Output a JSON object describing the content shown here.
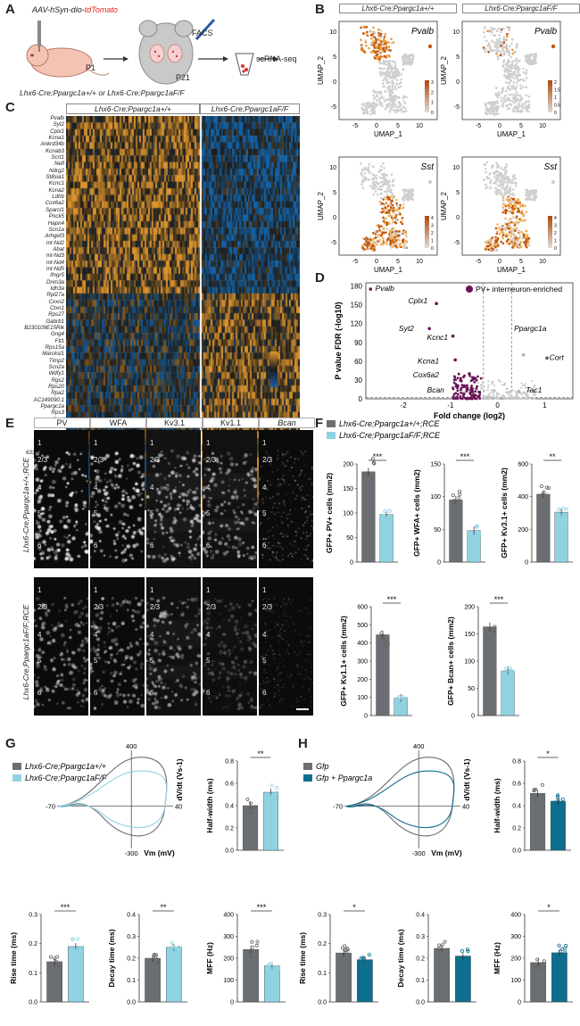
{
  "panelA": {
    "letter": "A",
    "virus_prefix": "AAV-hSyn-dio-",
    "virus_reporter": "tdTomato",
    "age1": "P1",
    "age2": "P21",
    "method": "FACS",
    "readout": "scRNA-seq",
    "genotypes": "Lhx6-Cre;Ppargc1a+/+ or Lhx6-Cre;Ppargc1aF/F"
  },
  "panelB": {
    "letter": "B",
    "col_titles": [
      "Lhx6-Cre;Ppargc1a+/+",
      "Lhx6-Cre;Ppargc1aF/F"
    ],
    "genes": [
      "Pvalb",
      "Pvalb",
      "Sst",
      "Sst"
    ],
    "xlabel": "UMAP_1",
    "ylabel": "UMAP_2",
    "xticks": [
      "-5",
      "0",
      "5",
      "10"
    ],
    "yticks": [
      "10",
      "5",
      "0",
      "-5"
    ],
    "scales": [
      [
        "3",
        "2",
        "1",
        "0"
      ],
      [
        "2",
        "1.5",
        "1",
        "0.5",
        "0"
      ],
      [
        "4",
        "3",
        "2",
        "1",
        "0"
      ],
      [
        "4",
        "3",
        "2",
        "1",
        "0"
      ]
    ]
  },
  "panelC": {
    "letter": "C",
    "col_titles": [
      "Lhx6-Cre;Ppargc1a+/+",
      "Lhx6-Cre;Ppargc1aF/F"
    ],
    "genes": [
      "Pvalb",
      "Syt2",
      "Cplx1",
      "Kcna1",
      "Ankrd34b",
      "Kcnab3",
      "Scrt1",
      "Nefl",
      "Ndrg2",
      "St8sia1",
      "Kcnc1",
      "Kcna2",
      "Ldhb",
      "Cox6a2",
      "Sparcl1",
      "Pnck5",
      "Hapn4",
      "Scn1a",
      "Arhgef3",
      "mt-Nd2",
      "Abat",
      "mt-Nd3",
      "mt-Nd4",
      "mt-Nd5",
      "Ifngr5",
      "Dnm3a",
      "Idh3a",
      "Rpl27a",
      "Cxxn2",
      "Ctxn1",
      "Rps27",
      "Gabrb1",
      "B230109E15Rik",
      "Gng4",
      "Ftl1",
      "Rps15a",
      "Marcksl1",
      "Timp2",
      "Scn2a",
      "Wdfy1",
      "Rgs2",
      "Rps20",
      "Rpa2",
      "AC149090.1",
      "Ppargc1a",
      "Rps3",
      "Scrn",
      "Ndn",
      "Atp1b2",
      "Selenow",
      "Ahi1",
      "6330403k07Rik",
      "Rpl41",
      "Hap1",
      "Fxyd6",
      "Gadra2",
      "Tmsb10",
      "Cartpt",
      "Gap43",
      "Cort"
    ],
    "scale": [
      "2",
      "1",
      "0",
      "-1",
      "-2"
    ]
  },
  "panelD": {
    "letter": "D",
    "legend": "PV+ interneuron-enriched",
    "xlabel": "Fold change (log2)",
    "ylabel": "P value FDR (-log10)",
    "labels": [
      "Pvalb",
      "Cplx1",
      "Syt2",
      "Kcnc1",
      "Kcna1",
      "Cox6a2",
      "Bcan",
      "Ppargc1a",
      "Cort",
      "Tac1"
    ],
    "xticks": [
      "-2",
      "-1",
      "0",
      "1"
    ],
    "yticks": [
      "180",
      "150",
      "120",
      "90",
      "60",
      "30",
      "0"
    ]
  },
  "panelE": {
    "letter": "E",
    "markers": [
      "PV",
      "WFA",
      "Kv3.1",
      "Kv1.1",
      "Bcan"
    ],
    "row_labels": [
      "Lhx6-Cre;Ppargc1a+/+;RCE",
      "Lhx6-Cre;Ppargc1aF/F;RCE"
    ],
    "layers": [
      "1",
      "2/3",
      "4",
      "5",
      "6"
    ]
  },
  "panelF": {
    "letter": "F",
    "legend": [
      "Lhx6-Cre;Ppargc1a+/+;RCE",
      "Lhx6-Cre;Ppargc1aF/F;RCE"
    ],
    "charts": [
      {
        "ylabel": "GFP+ PV+ cells (mm2)",
        "ymax": 200,
        "ticks": [
          "0",
          "50",
          "100",
          "150",
          "200"
        ],
        "values": [
          184,
          97
        ],
        "sig": "***"
      },
      {
        "ylabel": "GFP+ WFA+ cells (mm2)",
        "ymax": 150,
        "ticks": [
          "0",
          "50",
          "100",
          "150"
        ],
        "values": [
          95,
          48
        ],
        "sig": "***"
      },
      {
        "ylabel": "GFP+ Kv3.1+ cells (mm2)",
        "ymax": 600,
        "ticks": [
          "0",
          "200",
          "400",
          "600"
        ],
        "values": [
          415,
          305
        ],
        "sig": "**"
      },
      {
        "ylabel": "GFP+ Kv1.1+ cells (mm2)",
        "ymax": 600,
        "ticks": [
          "0",
          "100",
          "200",
          "300",
          "400",
          "500",
          "600"
        ],
        "values": [
          445,
          95
        ],
        "sig": "***"
      },
      {
        "ylabel": "GFP+ Bcan+ cells (mm2)",
        "ymax": 200,
        "ticks": [
          "0",
          "50",
          "100",
          "150",
          "200"
        ],
        "values": [
          163,
          82
        ],
        "sig": "***"
      }
    ]
  },
  "panelG": {
    "letter": "G",
    "legend": [
      "Lhx6-Cre;Ppargc1a+/+",
      "Lhx6-Cre;Ppargc1aF/F"
    ],
    "phase_labels": {
      "ymax": "400",
      "ymin": "-300",
      "xmin": "-70",
      "xmax": "40",
      "vm": "Vm (mV)",
      "dvdt": "dV/dt (Vs-1)"
    },
    "charts": [
      {
        "ylabel": "Half-width (ms)",
        "ymax": 0.8,
        "ticks": [
          "0.0",
          "0.2",
          "0.4",
          "0.6",
          "0.8"
        ],
        "values": [
          0.4,
          0.52
        ],
        "sig": "**"
      },
      {
        "ylabel": "Rise time (ms)",
        "ymax": 0.3,
        "ticks": [
          "0.0",
          "0.1",
          "0.2",
          "0.3"
        ],
        "values": [
          0.138,
          0.19
        ],
        "sig": "***"
      },
      {
        "ylabel": "Decay time (ms)",
        "ymax": 0.4,
        "ticks": [
          "0.0",
          "0.1",
          "0.2",
          "0.3",
          "0.4"
        ],
        "values": [
          0.2,
          0.25
        ],
        "sig": "**"
      },
      {
        "ylabel": "MFF (Hz)",
        "ymax": 400,
        "ticks": [
          "0",
          "100",
          "200",
          "300",
          "400"
        ],
        "values": [
          240,
          165
        ],
        "sig": "***"
      }
    ]
  },
  "panelH": {
    "letter": "H",
    "legend": [
      "Gfp",
      "Gfp + Ppargc1a"
    ],
    "phase_labels": {
      "ymax": "400",
      "ymin": "-300",
      "xmin": "-70",
      "xmax": "40",
      "vm": "Vm (mV)",
      "dvdt": "dV/dt (Vs-1)"
    },
    "charts": [
      {
        "ylabel": "Half-width (ms)",
        "ymax": 0.8,
        "ticks": [
          "0.0",
          "0.2",
          "0.4",
          "0.6",
          "0.8"
        ],
        "values": [
          0.51,
          0.44
        ],
        "sig": "*"
      },
      {
        "ylabel": "Rise time (ms)",
        "ymax": 0.3,
        "ticks": [
          "0.0",
          "0.1",
          "0.2",
          "0.3"
        ],
        "values": [
          0.168,
          0.145
        ],
        "sig": "*"
      },
      {
        "ylabel": "Decay time (ms)",
        "ymax": 0.4,
        "ticks": [
          "0.0",
          "0.1",
          "0.2",
          "0.3",
          "0.4"
        ],
        "values": [
          0.245,
          0.21
        ],
        "sig": ""
      },
      {
        "ylabel": "MFF (Hz)",
        "ymax": 400,
        "ticks": [
          "0",
          "100",
          "200",
          "300",
          "400"
        ],
        "values": [
          180,
          225
        ],
        "sig": "*"
      }
    ]
  },
  "colors": {
    "grey": "#6b6e72",
    "lightblue": "#8fd3e2",
    "darkblue": "#0e6e8e",
    "purple": "#6a1457",
    "orange": "#d9770f",
    "navy": "#123a6e"
  }
}
